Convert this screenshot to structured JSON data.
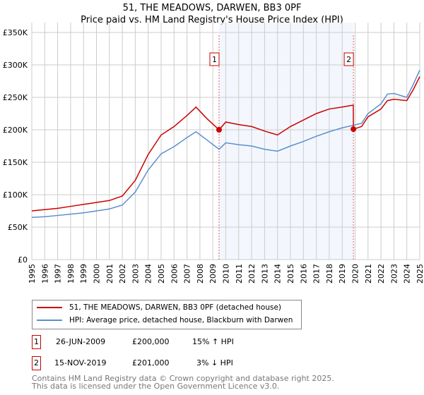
{
  "title_line1": "51, THE MEADOWS, DARWEN, BB3 0PF",
  "title_line2": "Price paid vs. HM Land Registry's House Price Index (HPI)",
  "chart_data": {
    "type": "line",
    "ylim": [
      0,
      350000
    ],
    "xlim": [
      1995,
      2025
    ],
    "y_ticks": [
      0,
      50000,
      100000,
      150000,
      200000,
      250000,
      300000,
      350000
    ],
    "y_tick_labels": [
      "£0",
      "£50K",
      "£100K",
      "£150K",
      "£200K",
      "£250K",
      "£300K",
      "£350K"
    ],
    "x_tick_labels": [
      "1995",
      "1996",
      "1997",
      "1998",
      "1999",
      "2000",
      "2001",
      "2002",
      "2003",
      "2004",
      "2005",
      "2006",
      "2007",
      "2008",
      "2009",
      "2010",
      "2011",
      "2012",
      "2013",
      "2014",
      "2015",
      "2016",
      "2017",
      "2018",
      "2019",
      "2020",
      "2021",
      "2022",
      "2023",
      "2024",
      "2025"
    ],
    "grid": true,
    "shaded_range": [
      2009.48,
      2019.87
    ],
    "series": [
      {
        "name": "51, THE MEADOWS, DARWEN, BB3 0PF (detached house)",
        "color": "#cc0000",
        "x": [
          1995,
          1996,
          1997,
          1998,
          1999,
          2000,
          2001,
          2002,
          2003,
          2004,
          2005,
          2006,
          2007,
          2007.7,
          2008.5,
          2009.48,
          2010,
          2011,
          2012,
          2013,
          2014,
          2015,
          2016,
          2017,
          2018,
          2019,
          2019.86,
          2019.87,
          2020.5,
          2021,
          2022,
          2022.5,
          2023,
          2024,
          2024.5,
          2025
        ],
        "y": [
          75000,
          77000,
          79000,
          82000,
          85000,
          88000,
          91000,
          98000,
          122000,
          162000,
          192000,
          205000,
          222000,
          235000,
          218000,
          200000,
          212000,
          208000,
          205000,
          198000,
          192000,
          205000,
          215000,
          225000,
          232000,
          235000,
          238000,
          201000,
          205000,
          220000,
          232000,
          245000,
          247000,
          245000,
          262000,
          282000
        ]
      },
      {
        "name": "HPI: Average price, detached house, Blackburn with Darwen",
        "color": "#5b8fd0",
        "x": [
          1995,
          1996,
          1997,
          1998,
          1999,
          2000,
          2001,
          2002,
          2003,
          2004,
          2005,
          2006,
          2007,
          2007.7,
          2008.5,
          2009.48,
          2010,
          2011,
          2012,
          2013,
          2014,
          2015,
          2016,
          2017,
          2018,
          2019,
          2019.87,
          2020.5,
          2021,
          2022,
          2022.5,
          2023,
          2024,
          2024.5,
          2025
        ],
        "y": [
          65000,
          66000,
          68000,
          70000,
          72000,
          75000,
          78000,
          84000,
          104000,
          138000,
          163000,
          174000,
          188000,
          197000,
          185000,
          170000,
          180000,
          177000,
          175000,
          170000,
          167000,
          175000,
          182000,
          190000,
          197000,
          203000,
          207000,
          210000,
          225000,
          240000,
          255000,
          256000,
          250000,
          270000,
          292000
        ]
      }
    ],
    "annotations": [
      {
        "label": "1",
        "x": 2009.48,
        "y": 200000
      },
      {
        "label": "2",
        "x": 2019.87,
        "y": 201000
      }
    ]
  },
  "legend": {
    "red": "51, THE MEADOWS, DARWEN, BB3 0PF (detached house)",
    "blue": "HPI: Average price, detached house, Blackburn with Darwen"
  },
  "transactions": [
    {
      "num": "1",
      "date": "26-JUN-2009",
      "price": "£200,000",
      "hpi": "15% ↑ HPI"
    },
    {
      "num": "2",
      "date": "15-NOV-2019",
      "price": "£201,000",
      "hpi": "3% ↓ HPI"
    }
  ],
  "footer1": "Contains HM Land Registry data © Crown copyright and database right 2025.",
  "footer2": "This data is licensed under the Open Government Licence v3.0."
}
